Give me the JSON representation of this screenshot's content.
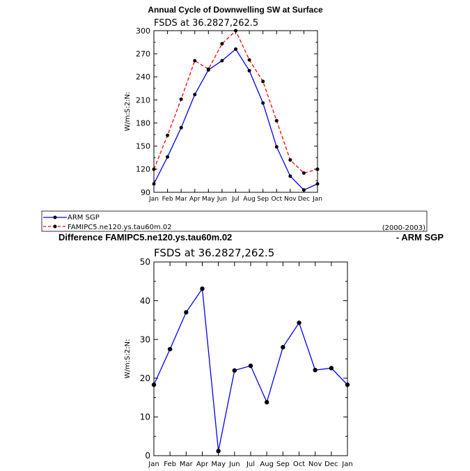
{
  "chart_data": [
    {
      "type": "line",
      "title": "Annual Cycle of Downwelling SW at Surface",
      "subtitle": "FSDS at 36.2827,262.5",
      "ylabel": "W/m:S:2:N:",
      "ylim": [
        90,
        300
      ],
      "yticks": [
        "90",
        "120",
        "150",
        "180",
        "210",
        "240",
        "270",
        "300"
      ],
      "categories": [
        "Jan",
        "Feb",
        "Mar",
        "Apr",
        "May",
        "Jun",
        "Jul",
        "Aug",
        "Sep",
        "Oct",
        "Nov",
        "Dec",
        "Jan"
      ],
      "series": [
        {
          "name": "ARM SGP",
          "color": "#0000ff",
          "style": "solid",
          "values": [
            101,
            136,
            174,
            217,
            249,
            261,
            276,
            248,
            206,
            149,
            111,
            93,
            101
          ]
        },
        {
          "name": "FAMIPC5.ne120.ys.tau60m.02",
          "color": "#ff0000",
          "style": "dashed",
          "values": [
            120,
            164,
            211,
            261,
            250,
            283,
            300,
            262,
            234,
            183,
            132,
            115,
            120
          ]
        }
      ],
      "legend": {
        "placement": "bottom",
        "entries": [
          "ARM SGP",
          "FAMIPC5.ne120.ys.tau60m.02"
        ],
        "period": "(2000-2003)"
      },
      "grid": false
    },
    {
      "type": "line",
      "title_left": "Difference FAMIPC5.ne120.ys.tau60m.02",
      "title_right": "- ARM SGP",
      "subtitle": "FSDS at 36.2827,262.5",
      "ylabel": "W/m:S:2:N:",
      "ylim": [
        0,
        50
      ],
      "yticks": [
        "0",
        "10",
        "20",
        "30",
        "40",
        "50"
      ],
      "categories": [
        "Jan",
        "Feb",
        "Mar",
        "Apr",
        "May",
        "Jun",
        "Jul",
        "Aug",
        "Sep",
        "Oct",
        "Nov",
        "Dec",
        "Jan"
      ],
      "series": [
        {
          "color": "#0000ff",
          "style": "solid",
          "values": [
            18.3,
            27.5,
            37.0,
            43.1,
            1.2,
            22.0,
            23.2,
            13.8,
            28.0,
            34.3,
            22.1,
            22.6,
            18.3
          ]
        }
      ],
      "grid": false
    }
  ]
}
